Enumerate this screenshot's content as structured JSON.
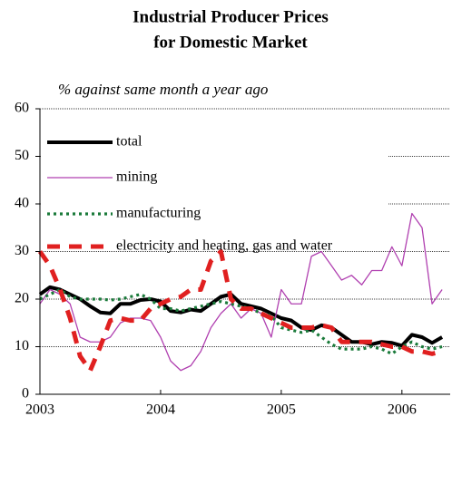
{
  "chart_data": {
    "type": "line",
    "title": [
      "Industrial Producer Prices",
      "for Domestic Market"
    ],
    "subtitle": "% against same month a year ago",
    "x": [
      2003,
      2003.083,
      2003.167,
      2003.25,
      2003.333,
      2003.417,
      2003.5,
      2003.583,
      2003.667,
      2003.75,
      2003.833,
      2003.917,
      2004,
      2004.083,
      2004.167,
      2004.25,
      2004.333,
      2004.417,
      2004.5,
      2004.583,
      2004.667,
      2004.75,
      2004.833,
      2004.917,
      2005,
      2005.083,
      2005.167,
      2005.25,
      2005.333,
      2005.417,
      2005.5,
      2005.583,
      2005.667,
      2005.75,
      2005.833,
      2005.917,
      2006,
      2006.083,
      2006.167,
      2006.25,
      2006.333
    ],
    "series": [
      {
        "name": "total",
        "color": "#000000",
        "style": "solid",
        "values": [
          21,
          22.5,
          22,
          21,
          20,
          18.5,
          17.2,
          17,
          19,
          19,
          19.8,
          20,
          19.5,
          17.5,
          17.2,
          17.8,
          17.5,
          19,
          20.5,
          21,
          19,
          18.5,
          18,
          17,
          16,
          15.5,
          14,
          13.5,
          14.5,
          14,
          12.5,
          11,
          11,
          10.5,
          11,
          10.8,
          10.2,
          12.5,
          12,
          10.8,
          12
        ]
      },
      {
        "name": "mining",
        "color": "#b040b0",
        "style": "thin",
        "values": [
          19,
          22,
          21,
          19,
          12,
          11,
          11,
          12,
          15,
          16,
          16,
          15.5,
          12,
          7,
          5,
          6,
          9,
          14,
          17,
          19,
          16,
          18,
          17,
          12,
          22,
          19,
          19,
          29,
          30,
          27,
          24,
          25,
          23,
          26,
          26,
          31,
          27,
          38,
          35,
          19,
          22
        ]
      },
      {
        "name": "manufacturing",
        "color": "#1a7a3a",
        "style": "dotted",
        "values": [
          20,
          21,
          22,
          20.5,
          20,
          20,
          20,
          19.8,
          20,
          20.5,
          21,
          20,
          18,
          18,
          17.5,
          18,
          18.5,
          19,
          19.5,
          19,
          18.5,
          18,
          17,
          16.5,
          14,
          13.5,
          13,
          13.5,
          12,
          10.5,
          9.5,
          9.5,
          9.5,
          10,
          9.5,
          8.5,
          10,
          11,
          10,
          9.5,
          10
        ]
      },
      {
        "name": "electricity and heating, gas and water",
        "color": "#e02020",
        "style": "dashed",
        "values": [
          30,
          27,
          22,
          16,
          8,
          5,
          10,
          15.5,
          16,
          15.5,
          15.5,
          18,
          19,
          20,
          20.5,
          22,
          22,
          28,
          30,
          20,
          18,
          18,
          17,
          16,
          15,
          14,
          14,
          14,
          14.5,
          14,
          11,
          11,
          11,
          11,
          10.5,
          10,
          10,
          9,
          9,
          8.5,
          9
        ]
      }
    ],
    "xlim": [
      2003,
      2006.4
    ],
    "xticks": [
      2003,
      2004,
      2005,
      2006
    ],
    "ylim": [
      0,
      60
    ],
    "yticks": [
      0,
      10,
      20,
      30,
      40,
      50,
      60
    ],
    "grid": true
  }
}
